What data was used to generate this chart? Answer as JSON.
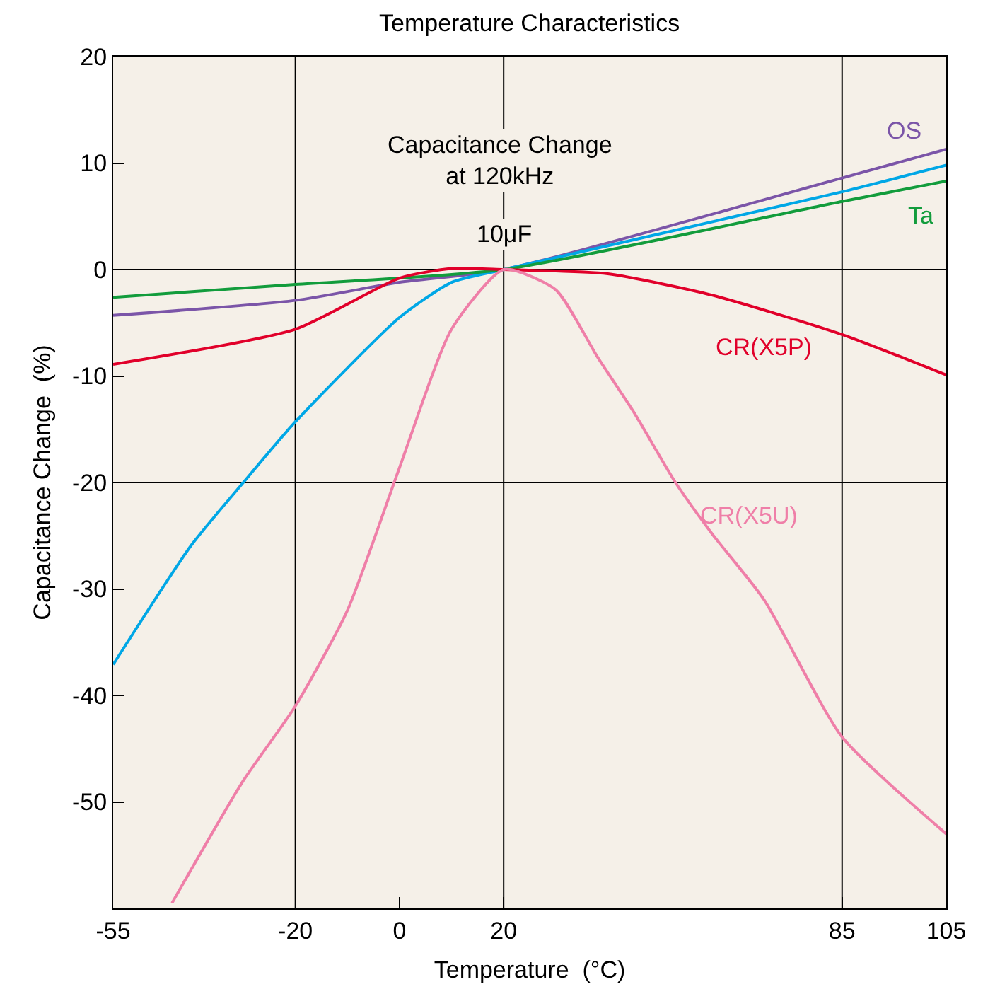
{
  "chart_data": {
    "type": "line",
    "title": "Temperature Characteristics",
    "xlabel": "Temperature  (°C)",
    "ylabel": "Capacitance Change  (%)",
    "annotations": [
      "Capacitance Change\nat 120kHz",
      "10μF"
    ],
    "xlim": [
      -55,
      105
    ],
    "xticks": [
      -55,
      -20,
      0,
      20,
      85,
      105
    ],
    "ylim": [
      -60,
      20
    ],
    "yticks": [
      20,
      10,
      0,
      -10,
      -20,
      -30,
      -40,
      -50
    ],
    "grid": false,
    "legend": false,
    "marker": "none",
    "line_style": "solid",
    "ref_lines": [
      {
        "axis": "x",
        "value": -20,
        "color": "#000000"
      },
      {
        "axis": "x",
        "value": 20,
        "color": "#000000"
      },
      {
        "axis": "x",
        "value": 85,
        "color": "#000000"
      },
      {
        "axis": "y",
        "value": 0,
        "color": "#000000"
      },
      {
        "axis": "y",
        "value": -20,
        "color": "#000000"
      }
    ],
    "series": [
      {
        "name": "OS",
        "color": "#7b55a8",
        "x": [
          -55,
          -20,
          0,
          20,
          85,
          105
        ],
        "values": [
          -4.3,
          -2.9,
          -1.2,
          0,
          8.6,
          11.3
        ]
      },
      {
        "color": "#00a7e6",
        "x": [
          -55,
          -40,
          -30,
          -20,
          0,
          10,
          20,
          85,
          105
        ],
        "values": [
          -37.1,
          -25.9,
          -20,
          -14.3,
          -4.5,
          -1.2,
          0,
          7.3,
          9.8
        ]
      },
      {
        "name": "Ta",
        "color": "#129c3c",
        "x": [
          -55,
          -20,
          20,
          85,
          105
        ],
        "values": [
          -2.6,
          -1.4,
          0,
          6.4,
          8.3
        ]
      },
      {
        "name": "CR(X5P)",
        "color": "#e1002a",
        "x": [
          -55,
          -20,
          0,
          10,
          20,
          40,
          60,
          85,
          105
        ],
        "values": [
          -8.9,
          -5.6,
          -0.8,
          0.1,
          0,
          -0.4,
          -2.4,
          -6.1,
          -9.9
        ]
      },
      {
        "name": "CR(X5U)",
        "color": "#ef7fa8",
        "x": [
          -43.7,
          -30,
          -20,
          -10,
          0,
          10,
          20,
          30,
          38,
          45,
          53,
          60,
          70,
          85,
          105
        ],
        "values": [
          -59.5,
          -48,
          -41,
          -32,
          -18.6,
          -5.6,
          0,
          -1.9,
          -8.2,
          -13.4,
          -20,
          -24.8,
          -31,
          -43.9,
          -53
        ]
      }
    ]
  }
}
